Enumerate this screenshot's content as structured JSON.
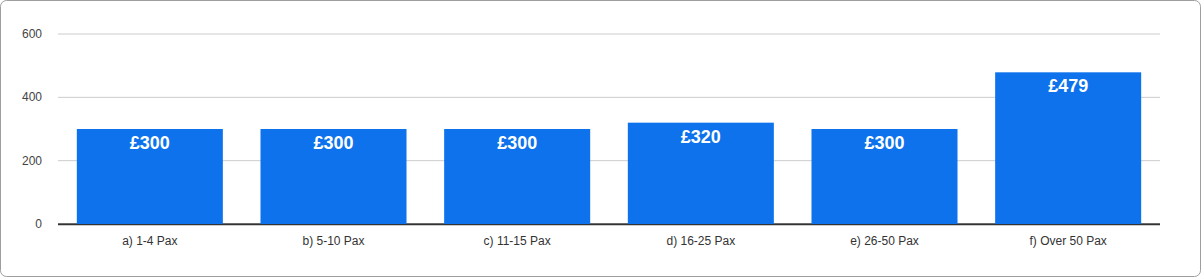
{
  "chart_data": {
    "type": "bar",
    "categories": [
      "a) 1-4 Pax",
      "b) 5-10 Pax",
      "c) 11-15 Pax",
      "d) 16-25 Pax",
      "e) 26-50 Pax",
      "f) Over 50 Pax"
    ],
    "values": [
      300,
      300,
      300,
      320,
      300,
      479
    ],
    "value_labels": [
      "£300",
      "£300",
      "£300",
      "£320",
      "£300",
      "£479"
    ],
    "color": "#0d72ec",
    "ylim": [
      0,
      600
    ],
    "yticks": [
      0,
      200,
      400,
      600
    ],
    "grid": true,
    "data_labels": true
  }
}
